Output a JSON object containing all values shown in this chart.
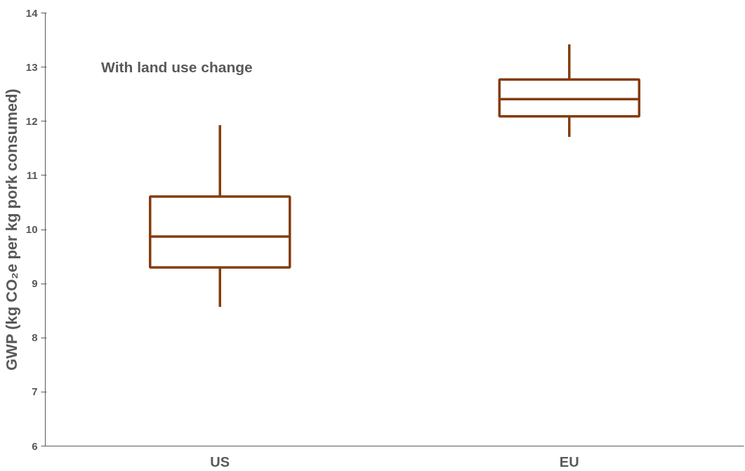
{
  "chart_data": {
    "type": "box",
    "categories": [
      "US",
      "EU"
    ],
    "ylabel": "GWP (kg CO₂e per kg pork consumed)",
    "color": "#843c0c",
    "boxes": [
      {
        "low": 8.57,
        "q1": 9.3,
        "median": 9.87,
        "q3": 10.61,
        "high": 11.93
      },
      {
        "low": 11.71,
        "q1": 12.09,
        "median": 12.41,
        "q3": 12.77,
        "high": 13.42
      }
    ],
    "ylim": [
      6,
      14
    ],
    "yticks": [
      6,
      7,
      8,
      9,
      10,
      11,
      12,
      13,
      14
    ],
    "grid": false,
    "annotations": [
      "With land use change"
    ]
  }
}
